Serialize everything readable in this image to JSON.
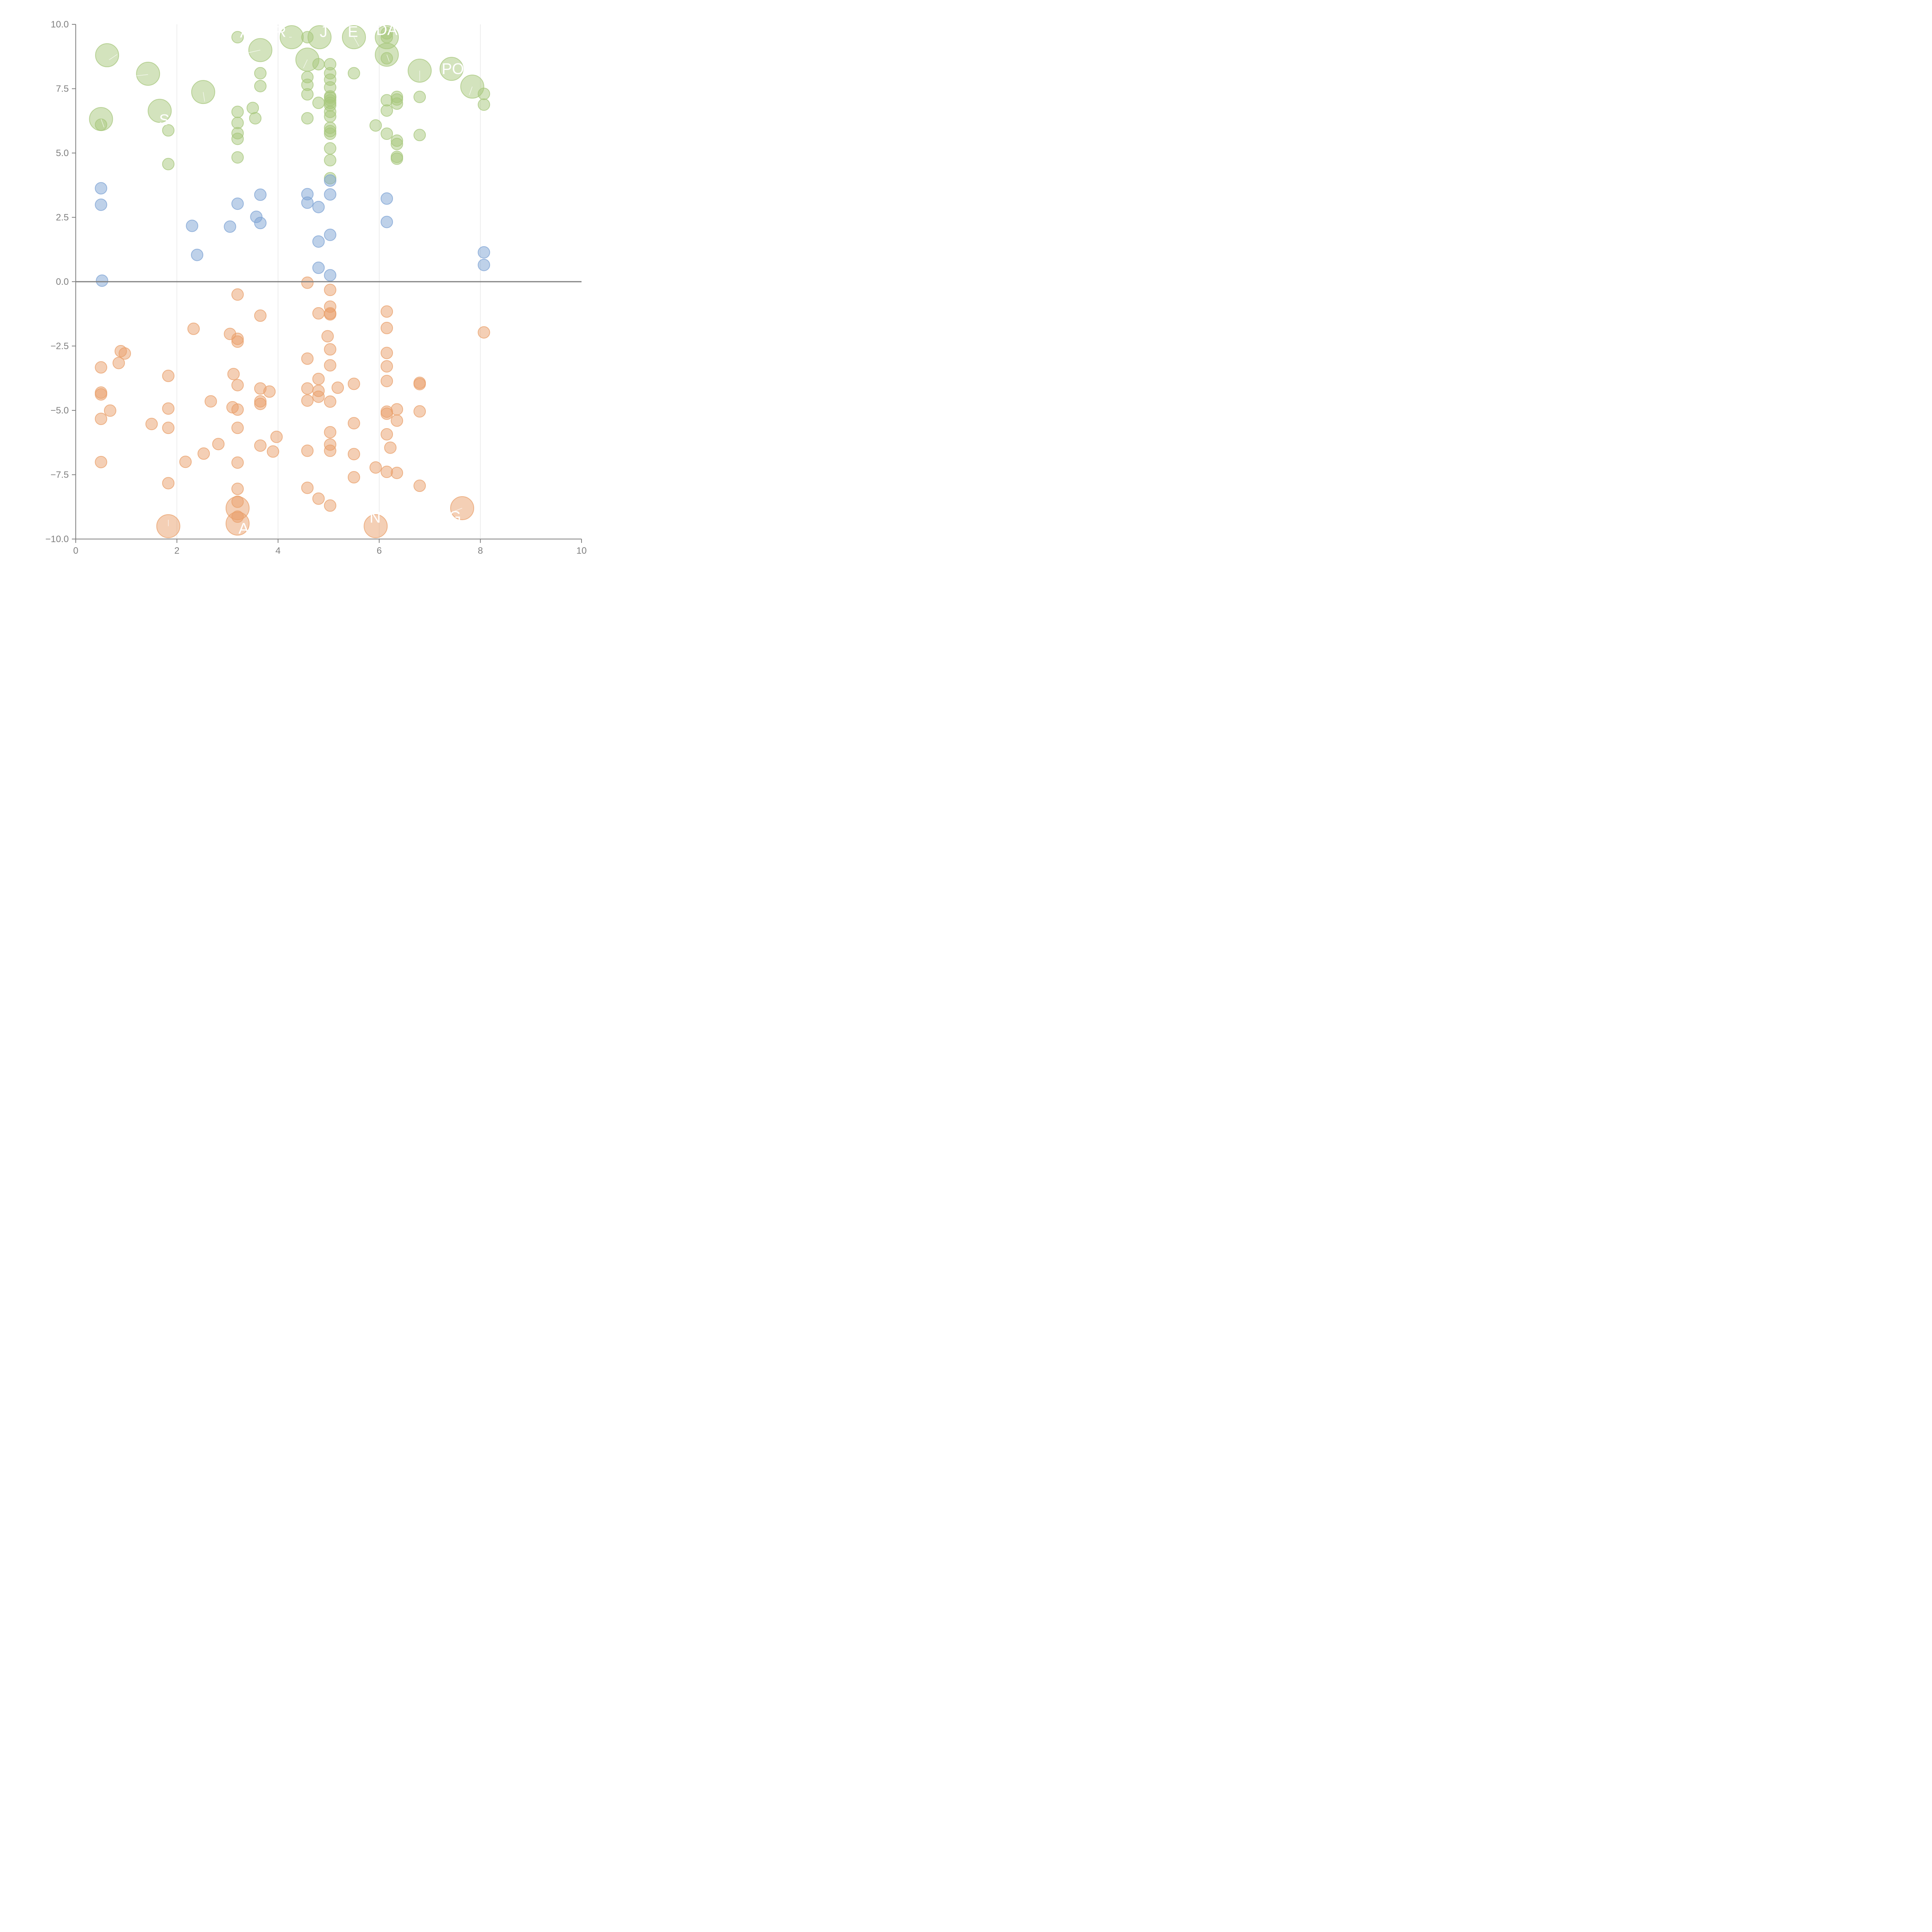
{
  "chart_data": {
    "type": "scatter",
    "title": "",
    "xlabel": "",
    "ylabel": "",
    "xlim": [
      0,
      10
    ],
    "ylim": [
      -10,
      10
    ],
    "x_ticks": [
      "0",
      "2",
      "4",
      "6",
      "8",
      "10"
    ],
    "y_ticks": [
      "10.0",
      "7.5",
      "5.0",
      "2.5",
      "0.0",
      "−2.5",
      "−5.0",
      "−7.5",
      "−10.0"
    ],
    "x_tick_values": [
      0,
      2,
      4,
      6,
      8,
      10
    ],
    "y_tick_values": [
      10,
      7.5,
      5,
      2.5,
      0,
      -2.5,
      -5,
      -7.5,
      -10
    ],
    "grid": "vertical",
    "zero_line": true,
    "colors": {
      "green": "#a7c77c",
      "blue": "#7ea3d4",
      "orange": "#e9a06b"
    },
    "series": [
      {
        "color": "green",
        "points": [
          [
            3.2,
            9.5
          ],
          [
            4.58,
            9.5
          ],
          [
            6.15,
            9.5
          ],
          [
            6.15,
            9.65
          ],
          [
            3.65,
            8.1
          ],
          [
            3.65,
            7.6
          ],
          [
            4.58,
            7.95
          ],
          [
            4.58,
            7.65
          ],
          [
            4.58,
            7.28
          ],
          [
            4.8,
            8.45
          ],
          [
            4.8,
            6.95
          ],
          [
            4.58,
            6.35
          ],
          [
            5.03,
            8.45
          ],
          [
            5.03,
            8.1
          ],
          [
            5.03,
            7.85
          ],
          [
            5.03,
            7.55
          ],
          [
            5.03,
            7.2
          ],
          [
            5.03,
            7.15
          ],
          [
            5.03,
            7.05
          ],
          [
            5.03,
            6.95
          ],
          [
            5.03,
            6.85
          ],
          [
            5.03,
            6.6
          ],
          [
            5.03,
            6.42
          ],
          [
            5.03,
            5.98
          ],
          [
            5.03,
            5.85
          ],
          [
            5.03,
            5.75
          ],
          [
            5.03,
            5.18
          ],
          [
            5.03,
            4.72
          ],
          [
            5.03,
            4.02
          ],
          [
            5.5,
            8.1
          ],
          [
            6.15,
            8.68
          ],
          [
            6.15,
            7.05
          ],
          [
            6.15,
            6.65
          ],
          [
            6.15,
            5.75
          ],
          [
            5.93,
            6.07
          ],
          [
            6.35,
            7.18
          ],
          [
            6.35,
            7.08
          ],
          [
            6.35,
            6.92
          ],
          [
            6.35,
            5.48
          ],
          [
            6.35,
            5.35
          ],
          [
            6.35,
            4.85
          ],
          [
            6.35,
            4.78
          ],
          [
            6.8,
            7.18
          ],
          [
            6.8,
            5.7
          ],
          [
            8.07,
            7.3
          ],
          [
            8.07,
            6.88
          ],
          [
            3.5,
            6.75
          ],
          [
            3.55,
            6.35
          ],
          [
            3.2,
            6.6
          ],
          [
            3.2,
            6.17
          ],
          [
            3.2,
            5.77
          ],
          [
            3.2,
            5.55
          ],
          [
            3.2,
            4.83
          ],
          [
            1.83,
            5.88
          ],
          [
            1.83,
            4.57
          ],
          [
            0.5,
            6.1
          ]
        ]
      },
      {
        "color": "green",
        "large": true,
        "points": [
          [
            0.62,
            8.8
          ],
          [
            1.43,
            8.08
          ],
          [
            2.52,
            7.37
          ],
          [
            1.66,
            6.64
          ],
          [
            0.5,
            6.32
          ],
          [
            3.65,
            9.0
          ],
          [
            4.27,
            9.5
          ],
          [
            4.82,
            9.5
          ],
          [
            5.5,
            9.5
          ],
          [
            6.15,
            9.5
          ],
          [
            6.15,
            8.82
          ],
          [
            4.58,
            8.63
          ],
          [
            6.8,
            8.2
          ],
          [
            7.43,
            8.27
          ],
          [
            7.84,
            7.58
          ]
        ]
      },
      {
        "color": "blue",
        "points": [
          [
            0.5,
            3.63
          ],
          [
            0.5,
            2.99
          ],
          [
            0.52,
            0.04
          ],
          [
            2.3,
            2.17
          ],
          [
            2.4,
            1.04
          ],
          [
            3.05,
            2.14
          ],
          [
            3.2,
            3.03
          ],
          [
            3.57,
            2.52
          ],
          [
            3.65,
            2.28
          ],
          [
            3.65,
            3.38
          ],
          [
            4.58,
            3.4
          ],
          [
            4.58,
            3.07
          ],
          [
            4.8,
            2.9
          ],
          [
            4.8,
            1.56
          ],
          [
            4.8,
            0.54
          ],
          [
            5.03,
            3.93
          ],
          [
            5.03,
            3.39
          ],
          [
            5.03,
            1.82
          ],
          [
            5.03,
            0.25
          ],
          [
            6.15,
            3.23
          ],
          [
            6.15,
            2.32
          ],
          [
            8.07,
            1.14
          ],
          [
            8.07,
            0.65
          ]
        ]
      },
      {
        "color": "orange",
        "points": [
          [
            4.58,
            -0.04
          ],
          [
            5.03,
            -0.32
          ],
          [
            3.2,
            -0.5
          ],
          [
            3.65,
            -1.32
          ],
          [
            5.03,
            -0.97
          ],
          [
            4.8,
            -1.23
          ],
          [
            5.03,
            -1.23
          ],
          [
            5.03,
            -1.27
          ],
          [
            6.15,
            -1.16
          ],
          [
            6.15,
            -1.8
          ],
          [
            2.33,
            -1.83
          ],
          [
            3.05,
            -2.03
          ],
          [
            3.2,
            -2.22
          ],
          [
            3.2,
            -2.33
          ],
          [
            4.98,
            -2.12
          ],
          [
            8.07,
            -1.97
          ],
          [
            5.03,
            -2.63
          ],
          [
            6.15,
            -2.77
          ],
          [
            0.89,
            -2.7
          ],
          [
            0.97,
            -2.79
          ],
          [
            0.85,
            -3.16
          ],
          [
            0.5,
            -3.33
          ],
          [
            4.58,
            -2.99
          ],
          [
            5.03,
            -3.25
          ],
          [
            6.15,
            -3.29
          ],
          [
            3.12,
            -3.59
          ],
          [
            1.83,
            -3.66
          ],
          [
            4.8,
            -3.78
          ],
          [
            6.15,
            -3.86
          ],
          [
            6.8,
            -3.93
          ],
          [
            6.8,
            -3.98
          ],
          [
            5.5,
            -3.97
          ],
          [
            3.2,
            -4.02
          ],
          [
            5.18,
            -4.12
          ],
          [
            3.65,
            -4.15
          ],
          [
            4.58,
            -4.15
          ],
          [
            3.83,
            -4.27
          ],
          [
            4.8,
            -4.24
          ],
          [
            0.5,
            -4.31
          ],
          [
            0.5,
            -4.38
          ],
          [
            4.8,
            -4.47
          ],
          [
            3.65,
            -4.65
          ],
          [
            3.65,
            -4.75
          ],
          [
            2.67,
            -4.65
          ],
          [
            4.58,
            -4.62
          ],
          [
            5.03,
            -4.66
          ],
          [
            0.68,
            -5.01
          ],
          [
            1.83,
            -4.93
          ],
          [
            3.1,
            -4.88
          ],
          [
            3.2,
            -4.97
          ],
          [
            6.15,
            -5.05
          ],
          [
            6.15,
            -5.13
          ],
          [
            6.35,
            -4.96
          ],
          [
            6.8,
            -5.04
          ],
          [
            6.35,
            -5.4
          ],
          [
            0.5,
            -5.33
          ],
          [
            1.5,
            -5.53
          ],
          [
            5.5,
            -5.5
          ],
          [
            1.83,
            -5.68
          ],
          [
            3.2,
            -5.68
          ],
          [
            5.03,
            -5.85
          ],
          [
            6.15,
            -5.93
          ],
          [
            3.97,
            -6.03
          ],
          [
            2.82,
            -6.31
          ],
          [
            3.65,
            -6.37
          ],
          [
            5.03,
            -6.33
          ],
          [
            6.22,
            -6.45
          ],
          [
            3.9,
            -6.6
          ],
          [
            4.58,
            -6.57
          ],
          [
            5.03,
            -6.57
          ],
          [
            2.53,
            -6.68
          ],
          [
            5.5,
            -6.7
          ],
          [
            2.17,
            -7.0
          ],
          [
            3.2,
            -7.03
          ],
          [
            0.5,
            -7.01
          ],
          [
            5.93,
            -7.22
          ],
          [
            6.15,
            -7.39
          ],
          [
            6.35,
            -7.43
          ],
          [
            5.5,
            -7.6
          ],
          [
            1.83,
            -7.83
          ],
          [
            6.8,
            -7.93
          ],
          [
            4.58,
            -8.01
          ],
          [
            3.2,
            -8.05
          ],
          [
            4.8,
            -8.43
          ],
          [
            3.2,
            -8.55
          ],
          [
            5.03,
            -8.7
          ],
          [
            3.2,
            -9.13
          ]
        ]
      },
      {
        "color": "orange",
        "large": true,
        "points": [
          [
            1.83,
            -9.5
          ],
          [
            3.2,
            -8.8
          ],
          [
            3.2,
            -9.4
          ],
          [
            5.93,
            -9.5
          ],
          [
            7.64,
            -8.8
          ]
        ]
      }
    ],
    "labels": [
      {
        "text": "A",
        "x": 3.35,
        "y": 9.7
      },
      {
        "text": "R",
        "x": 4.05,
        "y": 9.72
      },
      {
        "text": "J",
        "x": 4.9,
        "y": 9.72
      },
      {
        "text": "E",
        "x": 5.48,
        "y": 9.72
      },
      {
        "text": "DA",
        "x": 6.15,
        "y": 9.8
      },
      {
        "text": "POW",
        "x": 7.6,
        "y": 8.28
      },
      {
        "text": "S",
        "x": 1.75,
        "y": 6.3
      },
      {
        "text": "A",
        "x": 3.32,
        "y": -9.58
      },
      {
        "text": "N",
        "x": 5.92,
        "y": -9.15
      },
      {
        "text": "G",
        "x": 7.5,
        "y": -9.12
      }
    ],
    "leaders": [
      [
        0.82,
        8.83,
        0.66,
        8.62
      ],
      [
        1.43,
        8.05,
        1.2,
        8.0
      ],
      [
        2.52,
        7.37,
        2.55,
        7.0
      ],
      [
        3.65,
        9.0,
        3.42,
        8.9
      ],
      [
        4.27,
        9.5,
        4.22,
        9.5
      ],
      [
        5.5,
        9.5,
        5.6,
        9.15
      ],
      [
        6.15,
        8.82,
        6.2,
        8.55
      ],
      [
        4.58,
        8.63,
        4.5,
        8.3
      ],
      [
        6.8,
        8.2,
        6.8,
        7.8
      ],
      [
        7.84,
        7.58,
        7.78,
        7.25
      ],
      [
        0.5,
        6.32,
        0.56,
        6.0
      ],
      [
        1.83,
        -9.5,
        1.83,
        -9.25
      ],
      [
        7.64,
        -8.8,
        7.45,
        -8.95
      ]
    ]
  }
}
